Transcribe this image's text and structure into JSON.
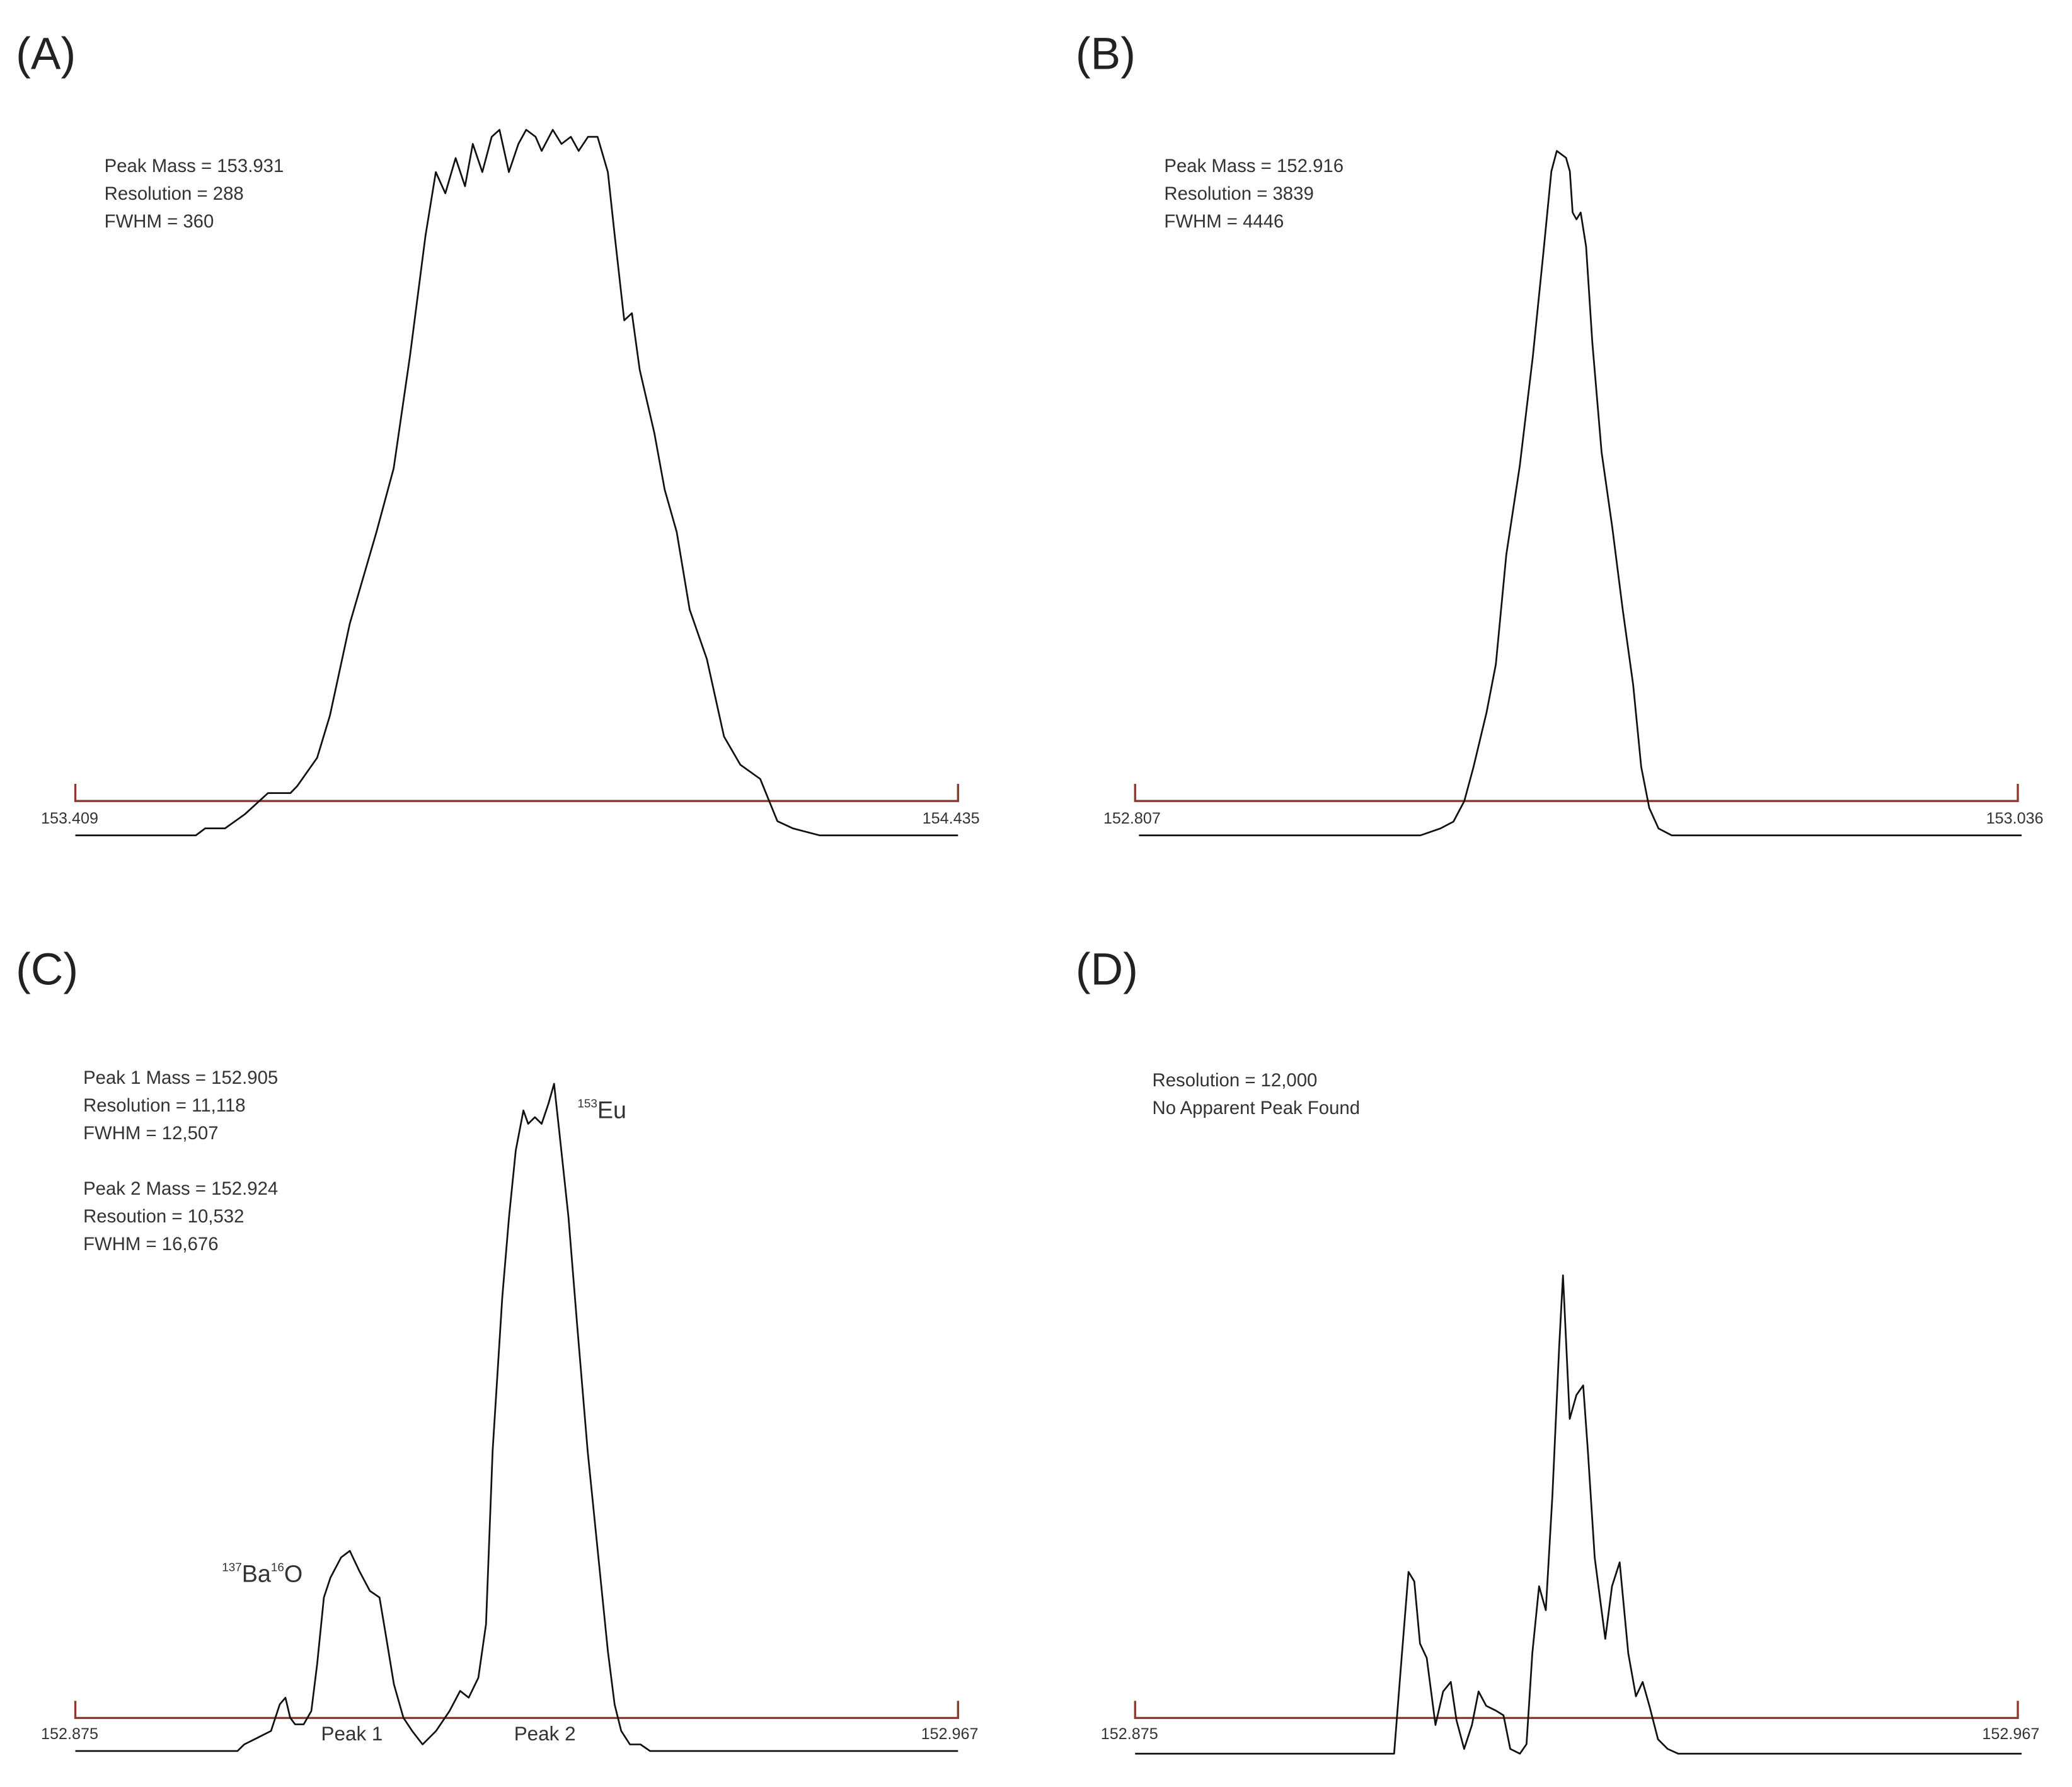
{
  "chart_data": [
    {
      "type": "line",
      "panel_label": "(A)",
      "annotations": [
        "Peak Mass = 153.931",
        "Resolution = 288",
        "FWHM = 360"
      ],
      "tick_labels": [
        "153.409",
        "154.435"
      ],
      "xlim": [
        153.409,
        154.435
      ],
      "ylim": [
        0,
        100
      ],
      "grid": false,
      "colors": {
        "axis": "#8b3a2f",
        "line": "#111111"
      },
      "series": [
        {
          "x": [
            153.409,
            153.549,
            153.56,
            153.583,
            153.606,
            153.624,
            153.633,
            153.644,
            153.652,
            153.659,
            153.667,
            153.69,
            153.705,
            153.728,
            153.759,
            153.779,
            153.798,
            153.816,
            153.828,
            153.839,
            153.851,
            153.862,
            153.871,
            153.882,
            153.893,
            153.902,
            153.913,
            153.924,
            153.933,
            153.944,
            153.951,
            153.964,
            153.974,
            153.985,
            153.994,
            154.005,
            154.016,
            154.028,
            154.036,
            154.047,
            154.056,
            154.065,
            154.082,
            154.094,
            154.108,
            154.123,
            154.143,
            154.163,
            154.182,
            154.205,
            154.225,
            154.243,
            154.274,
            154.435
          ],
          "y": [
            0,
            0,
            1,
            1,
            3,
            5,
            6,
            6,
            6,
            6,
            7,
            11,
            17,
            30,
            43,
            52,
            68,
            85,
            94,
            91,
            96,
            92,
            98,
            94,
            99,
            100,
            94,
            98,
            100,
            99,
            97,
            100,
            98,
            99,
            97,
            99,
            99,
            94,
            85,
            73,
            74,
            66,
            57,
            49,
            43,
            32,
            25,
            14,
            10,
            8,
            2,
            1,
            0,
            0
          ]
        }
      ]
    },
    {
      "type": "line",
      "panel_label": "(B)",
      "annotations": [
        "Peak Mass = 152.916",
        "Resolution = 3839",
        "FWHM = 4446"
      ],
      "tick_labels": [
        "152.807",
        "153.036"
      ],
      "xlim": [
        152.807,
        153.036
      ],
      "ylim": [
        0,
        100
      ],
      "grid": false,
      "colors": {
        "axis": "#8b3a2f",
        "line": "#111111"
      },
      "series": [
        {
          "x": [
            152.808,
            152.881,
            152.8862,
            152.8896,
            152.8924,
            152.8948,
            152.8982,
            152.9006,
            152.9033,
            152.9068,
            152.9102,
            152.9129,
            152.915,
            152.9164,
            152.9188,
            152.9198,
            152.9205,
            152.9215,
            152.9226,
            152.924,
            152.9256,
            152.928,
            152.9308,
            152.9335,
            152.9362,
            152.9383,
            152.9404,
            152.9428,
            152.9462,
            153.037
          ],
          "y": [
            0,
            0,
            1,
            2,
            5,
            10,
            18,
            25,
            41,
            54,
            70,
            85,
            97,
            100,
            99,
            97,
            91,
            90,
            91,
            86,
            72,
            56,
            45,
            33,
            22,
            10,
            4,
            1,
            0,
            0
          ]
        }
      ]
    },
    {
      "type": "line",
      "panel_label": "(C)",
      "annotations": [
        "Peak 1 Mass = 152.905",
        "Resolution = 11,118",
        "FWHM = 12,507",
        "Peak 2 Mass = 152.924",
        "Resoution = 10,532",
        "FWHM = 16,676"
      ],
      "peak_labels": [
        "Peak 1",
        "Peak 2"
      ],
      "isotope_labels": {
        "eu": {
          "mass": "153",
          "element": "Eu"
        },
        "bao": {
          "mass1": "137",
          "element1": "Ba",
          "mass2": "16",
          "element2": "O"
        }
      },
      "tick_labels": [
        "152.875",
        "152.967"
      ],
      "xlim": [
        152.875,
        152.967
      ],
      "ylim": [
        0,
        100
      ],
      "grid": false,
      "colors": {
        "axis": "#8b3a2f",
        "line": "#111111"
      },
      "series": [
        {
          "x": [
            152.875,
            152.8919,
            152.8926,
            152.894,
            152.8954,
            152.8963,
            152.8969,
            152.8974,
            152.8979,
            152.8988,
            152.8996,
            152.9002,
            152.9009,
            152.9016,
            152.9027,
            152.9036,
            152.9046,
            152.9057,
            152.9067,
            152.9074,
            152.9082,
            152.9092,
            152.9101,
            152.9112,
            152.9126,
            152.914,
            152.9151,
            152.916,
            152.917,
            152.9178,
            152.9185,
            152.9195,
            152.9202,
            152.9209,
            152.9217,
            152.9222,
            152.9229,
            152.9236,
            152.9243,
            152.9249,
            152.9255,
            152.9264,
            152.9273,
            152.9284,
            152.9298,
            152.9305,
            152.9312,
            152.9319,
            152.9328,
            152.9339,
            152.9349,
            152.967
          ],
          "y": [
            0,
            0,
            1,
            2,
            3,
            7,
            8,
            5,
            4,
            4,
            6,
            13,
            23,
            26,
            29,
            30,
            27,
            24,
            23,
            17,
            10,
            5,
            3,
            1,
            3,
            6,
            9,
            8,
            11,
            19,
            45,
            68,
            80,
            90,
            96,
            94,
            95,
            94,
            97,
            100,
            92,
            80,
            64,
            45,
            25,
            15,
            7,
            3,
            1,
            1,
            0,
            0
          ]
        }
      ]
    },
    {
      "type": "line",
      "panel_label": "(D)",
      "annotations": [
        "Resolution = 12,000",
        "No Apparent Peak Found"
      ],
      "tick_labels": [
        "152.875",
        "152.967"
      ],
      "xlim": [
        152.875,
        152.967
      ],
      "ylim": [
        0,
        100
      ],
      "grid": false,
      "colors": {
        "axis": "#8b3a2f",
        "line": "#111111"
      },
      "series": [
        {
          "x": [
            152.875,
            152.902,
            152.9027,
            152.9035,
            152.9041,
            152.9047,
            152.9054,
            152.9063,
            152.9071,
            152.9079,
            152.9085,
            152.9093,
            152.9101,
            152.9108,
            152.9116,
            152.9126,
            152.9134,
            152.9141,
            152.9151,
            152.9158,
            152.9164,
            152.9171,
            152.9178,
            152.9185,
            152.9192,
            152.9196,
            152.9203,
            152.921,
            152.9217,
            152.9222,
            152.9229,
            152.924,
            152.9247,
            152.9255,
            152.9264,
            152.9272,
            152.9279,
            152.9286,
            152.9295,
            152.9305,
            152.9316,
            152.9674
          ],
          "y": [
            0,
            0,
            18,
            38,
            36,
            23,
            20,
            6,
            13,
            15,
            7,
            1,
            6,
            13,
            10,
            9,
            8,
            1,
            0,
            2,
            21,
            35,
            30,
            54,
            85,
            100,
            70,
            75,
            77,
            63,
            41,
            24,
            35,
            40,
            21,
            12,
            15,
            10,
            3,
            1,
            0,
            0
          ]
        }
      ]
    }
  ]
}
